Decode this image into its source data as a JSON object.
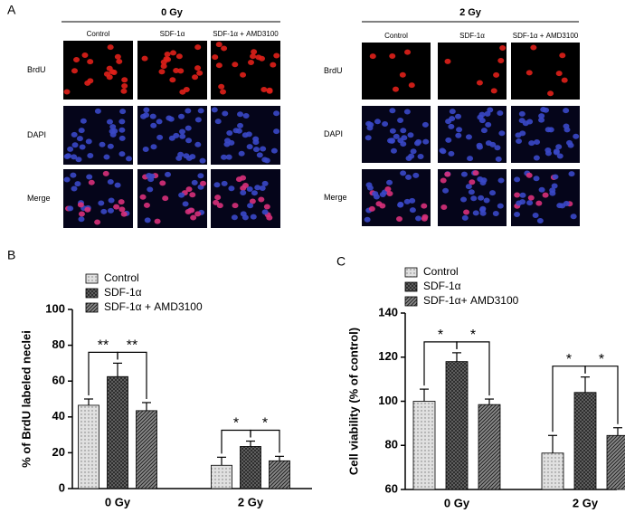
{
  "panel_labels": [
    "A",
    "B",
    "C"
  ],
  "micrographs": [
    {
      "title": "0 Gy",
      "columns": [
        "Control",
        "SDF-1α",
        "SDF-1α + AMD3100"
      ],
      "rows": [
        "BrdU",
        "DAPI",
        "Merge"
      ]
    },
    {
      "title": "2 Gy",
      "columns": [
        "Control",
        "SDF-1α",
        "SDF-1α + AMD3100"
      ],
      "rows": [
        "BrdU",
        "DAPI",
        "Merge"
      ]
    }
  ],
  "chart_data": [
    {
      "type": "bar",
      "ylabel": "% of BrdU labeled neclei",
      "categories": [
        "0 Gy",
        "2 Gy"
      ],
      "series": [
        {
          "name": "Control",
          "color": "#e0e0e0",
          "pattern": "dots",
          "values": [
            46.5,
            13
          ],
          "errors": [
            3.5,
            4.5
          ]
        },
        {
          "name": "SDF-1α",
          "color": "#6a6a6a",
          "pattern": "cross",
          "values": [
            62.5,
            23.5
          ],
          "errors": [
            7.5,
            3
          ]
        },
        {
          "name": "SDF-1α + AMD3100",
          "color": "#8a8a8a",
          "pattern": "diagonal",
          "values": [
            43.5,
            15.5
          ],
          "errors": [
            4.5,
            2.5
          ]
        }
      ],
      "significance": [
        "**",
        "**",
        "*",
        "*"
      ],
      "ylim": [
        0,
        100
      ],
      "yticks": [
        0,
        20,
        40,
        60,
        80,
        100
      ]
    },
    {
      "type": "bar",
      "ylabel": "Cell viability (% of control)",
      "categories": [
        "0 Gy",
        "2 Gy"
      ],
      "series": [
        {
          "name": "Control",
          "color": "#e0e0e0",
          "pattern": "dots",
          "values": [
            100,
            76.5
          ],
          "errors": [
            5.5,
            8
          ]
        },
        {
          "name": "SDF-1α",
          "color": "#6a6a6a",
          "pattern": "cross",
          "values": [
            118,
            104
          ],
          "errors": [
            4,
            7
          ]
        },
        {
          "name": "SDF-1α+ AMD3100",
          "color": "#8a8a8a",
          "pattern": "diagonal",
          "values": [
            98.5,
            84.5
          ],
          "errors": [
            2.5,
            3.5
          ]
        }
      ],
      "significance": [
        "*",
        "*",
        "*",
        "*"
      ],
      "ylim": [
        60,
        140
      ],
      "yticks": [
        60,
        80,
        100,
        120,
        140
      ]
    }
  ]
}
